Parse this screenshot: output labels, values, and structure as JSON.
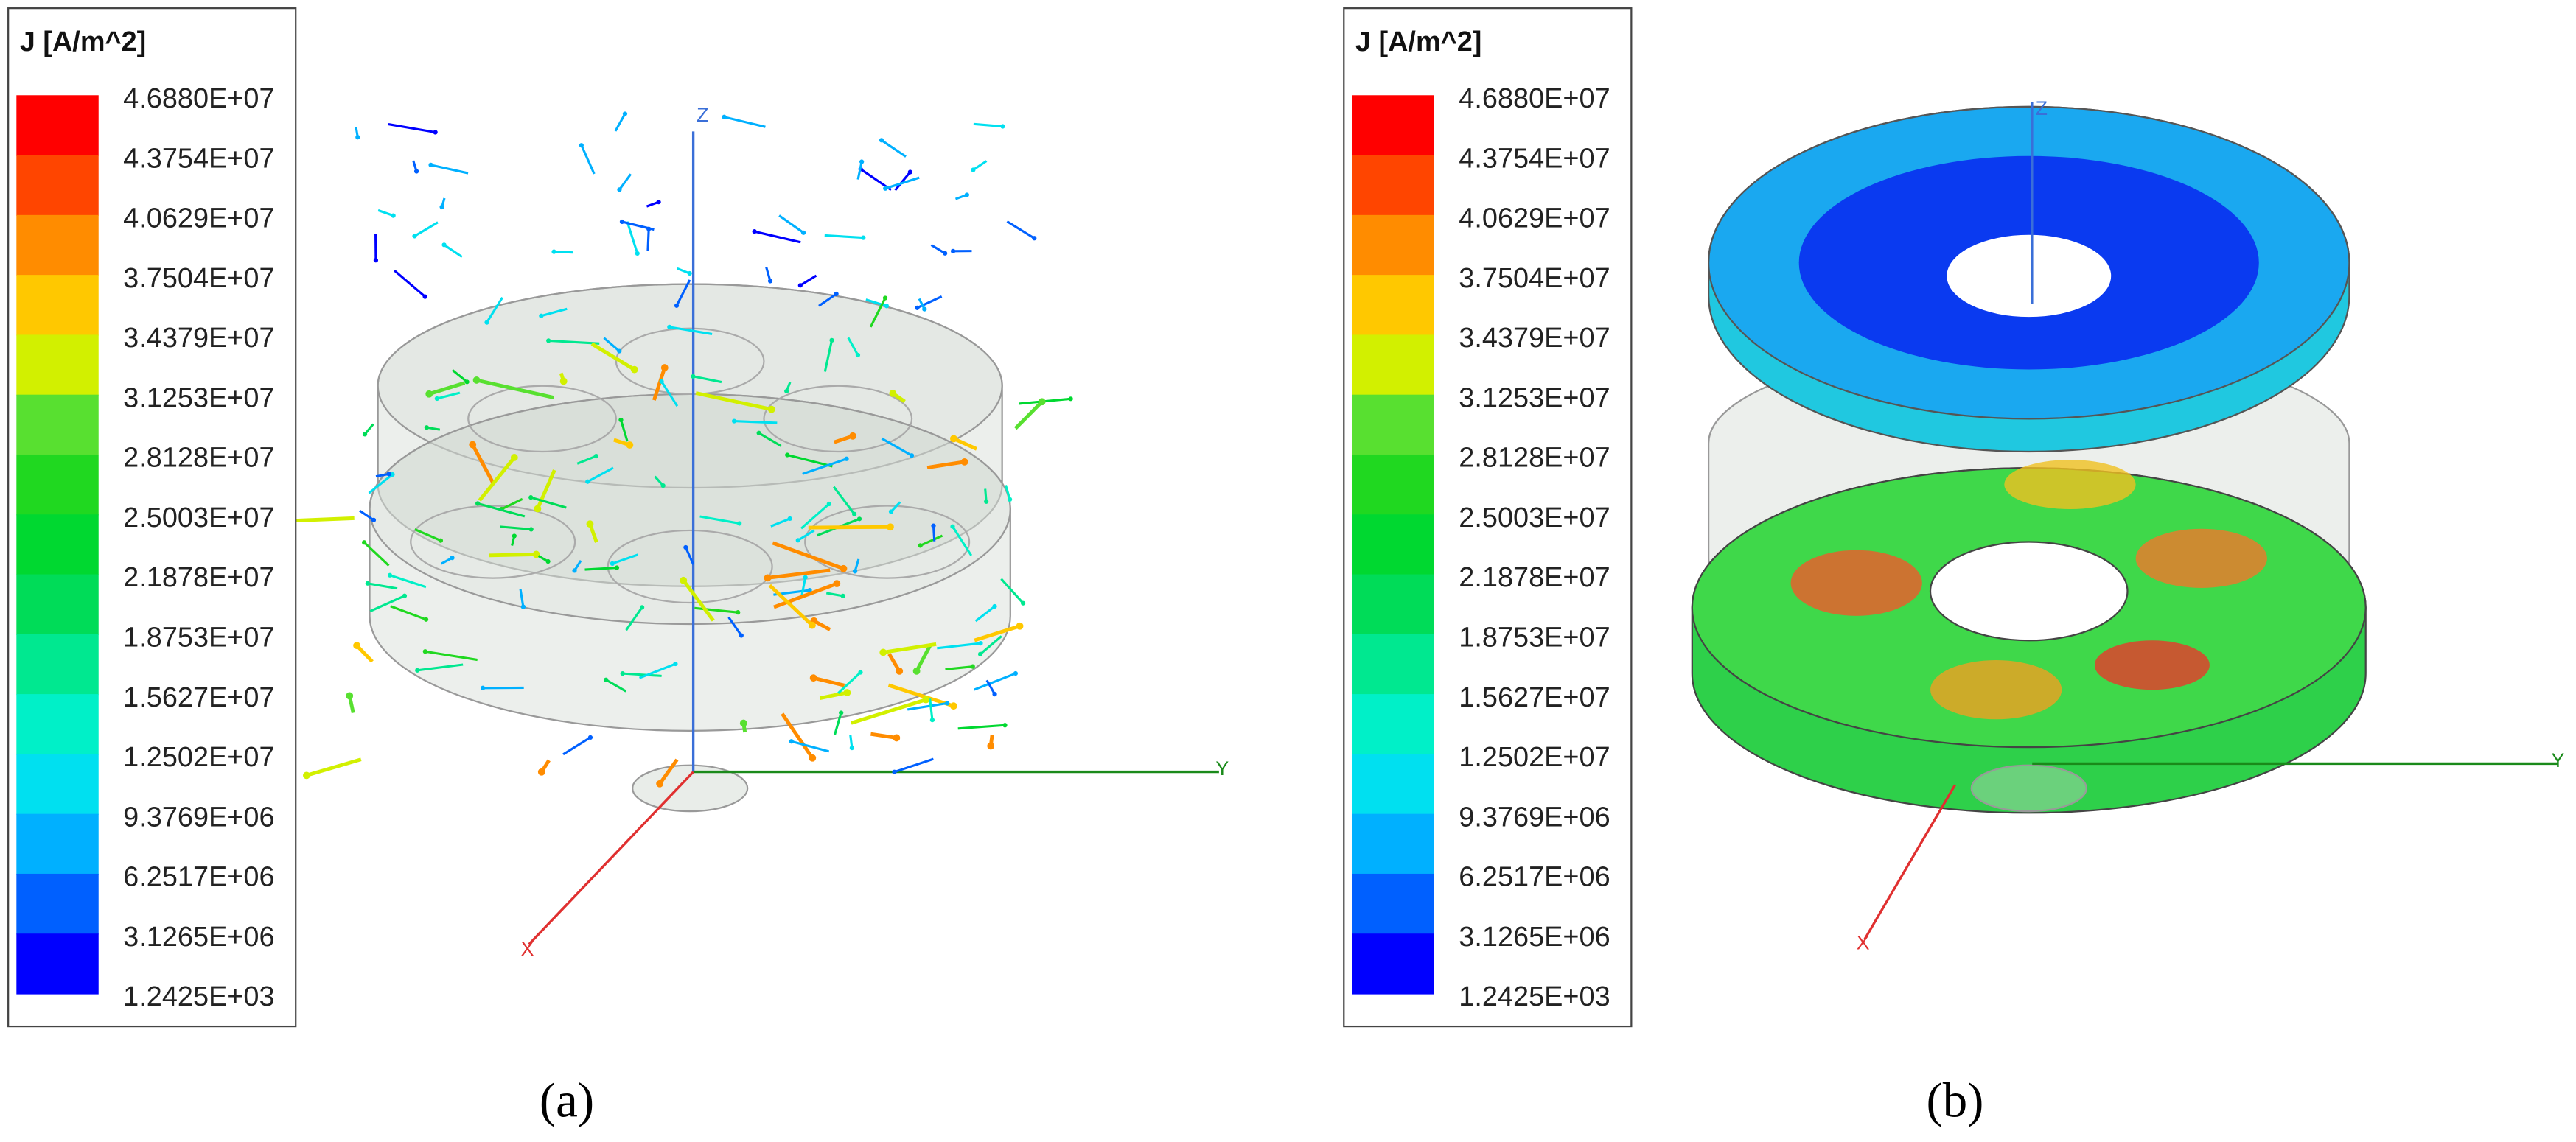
{
  "panels": [
    {
      "legend": {
        "title": "J [A/m^2]",
        "labels": [
          "4.6880E+07",
          "4.3754E+07",
          "4.0629E+07",
          "3.7504E+07",
          "3.4379E+07",
          "3.1253E+07",
          "2.8128E+07",
          "2.5003E+07",
          "2.1878E+07",
          "1.8753E+07",
          "1.5627E+07",
          "1.2502E+07",
          "9.3769E+06",
          "6.2517E+06",
          "3.1265E+06",
          "1.2425E+03"
        ]
      },
      "axes": {
        "x": "X",
        "y": "Y",
        "z": "Z"
      },
      "caption": "(a)"
    },
    {
      "legend": {
        "title": "J [A/m^2]",
        "labels": [
          "4.6880E+07",
          "4.3754E+07",
          "4.0629E+07",
          "3.7504E+07",
          "3.4379E+07",
          "3.1253E+07",
          "2.8128E+07",
          "2.5003E+07",
          "2.1878E+07",
          "1.8753E+07",
          "1.5627E+07",
          "1.2502E+07",
          "9.3769E+06",
          "6.2517E+06",
          "3.1265E+06",
          "1.2425E+03"
        ]
      },
      "axes": {
        "x": "X",
        "y": "Y",
        "z": "Z"
      },
      "caption": "(b)"
    }
  ]
}
